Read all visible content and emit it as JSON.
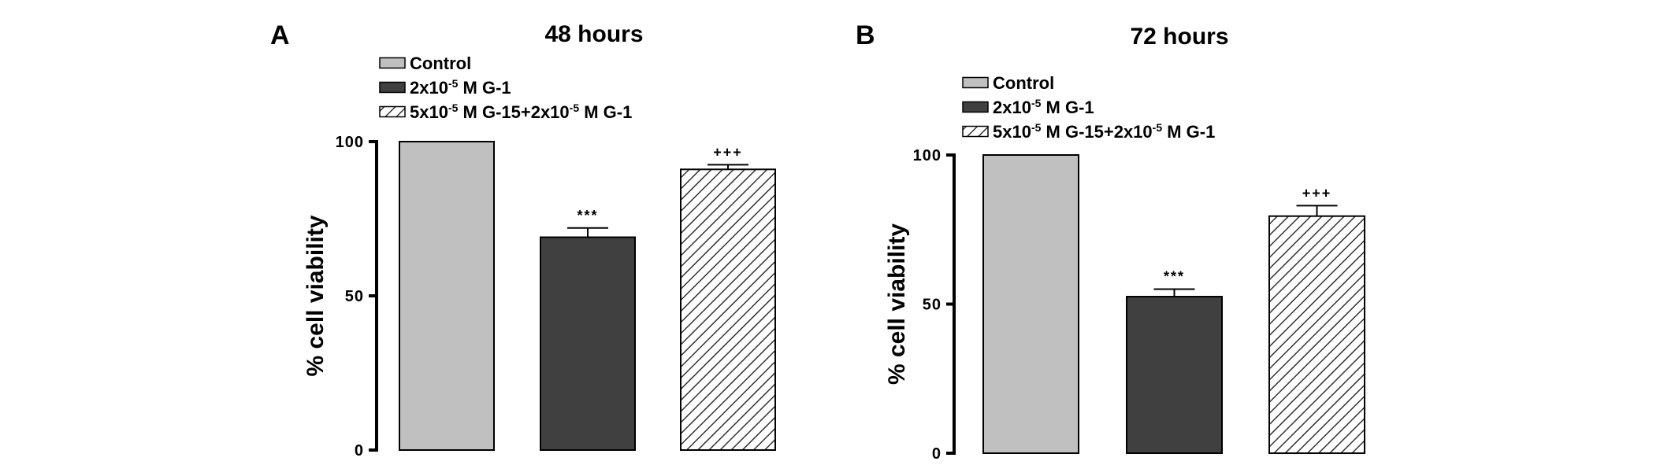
{
  "chart_data": [
    {
      "type": "bar",
      "panel_label": "A",
      "title": "48 hours",
      "ylabel": "% cell viability",
      "ylim": [
        0,
        100
      ],
      "yticks": [
        "0",
        "50",
        "100"
      ],
      "categories": [
        "Control",
        "2x10-5 M G-1",
        "5x10-5 M G-15+2x10-5 M G-1"
      ],
      "values": [
        100,
        69,
        91
      ],
      "errors": [
        0,
        3,
        1.5
      ],
      "significance": [
        "",
        "***",
        "+++"
      ],
      "fills": [
        "#c0c0c0",
        "#404040",
        "hatch"
      ],
      "legend": {
        "position": "top-left",
        "entries": [
          {
            "base": "Control",
            "parts": []
          },
          {
            "base": "",
            "parts": [
              {
                "text": "2x10",
                "sup": false
              },
              {
                "text": "-5",
                "sup": true
              },
              {
                "text": " M G-1",
                "sup": false
              }
            ]
          },
          {
            "base": "",
            "parts": [
              {
                "text": "5x10",
                "sup": false
              },
              {
                "text": "-5",
                "sup": true
              },
              {
                "text": " M G-15+2x10",
                "sup": false
              },
              {
                "text": "-5",
                "sup": true
              },
              {
                "text": " M G-1",
                "sup": false
              }
            ]
          }
        ]
      }
    },
    {
      "type": "bar",
      "panel_label": "B",
      "title": "72 hours",
      "ylabel": "% cell viability",
      "ylim": [
        0,
        100
      ],
      "yticks": [
        "0",
        "50",
        "100"
      ],
      "categories": [
        "Control",
        "2x10-5 M G-1",
        "5x10-5 M G-15+2x10-5 M G-1"
      ],
      "values": [
        100,
        52.5,
        79.5
      ],
      "errors": [
        0,
        2.5,
        3.5
      ],
      "significance": [
        "",
        "***",
        "+++"
      ],
      "fills": [
        "#c0c0c0",
        "#404040",
        "hatch"
      ],
      "legend": {
        "position": "top-left",
        "entries": [
          {
            "base": "Control",
            "parts": []
          },
          {
            "base": "",
            "parts": [
              {
                "text": "2x10",
                "sup": false
              },
              {
                "text": "-5",
                "sup": true
              },
              {
                "text": " M G-1",
                "sup": false
              }
            ]
          },
          {
            "base": "",
            "parts": [
              {
                "text": "5x10",
                "sup": false
              },
              {
                "text": "-5",
                "sup": true
              },
              {
                "text": " M G-15+2x10",
                "sup": false
              },
              {
                "text": "-5",
                "sup": true
              },
              {
                "text": " M G-1",
                "sup": false
              }
            ]
          }
        ]
      }
    }
  ],
  "colors": {
    "control": "#c0c0c0",
    "g1": "#404040",
    "hatch_line": "#333333",
    "axis": "#000000"
  }
}
